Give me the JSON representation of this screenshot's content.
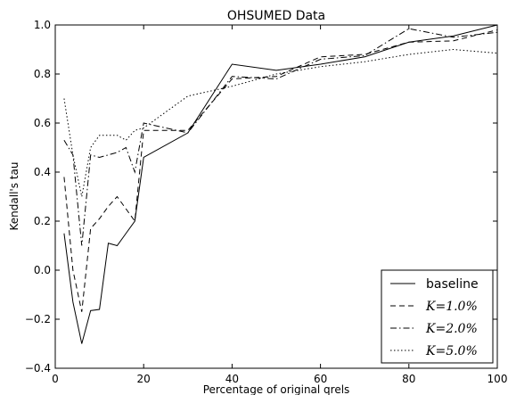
{
  "chart_data": {
    "type": "line",
    "title": "OHSUMED Data",
    "xlabel": "Percentage of original qrels",
    "ylabel": "Kendall's tau",
    "xlim": [
      0,
      100
    ],
    "ylim": [
      -0.4,
      1.0
    ],
    "xticks": [
      "0",
      "20",
      "40",
      "60",
      "80",
      "100"
    ],
    "yticks": [
      "−0.4",
      "−0.2",
      "0.0",
      "0.2",
      "0.4",
      "0.6",
      "0.8",
      "1.0"
    ],
    "xtick_values": [
      0,
      20,
      40,
      60,
      80,
      100
    ],
    "ytick_values": [
      -0.4,
      -0.2,
      0.0,
      0.2,
      0.4,
      0.6,
      0.8,
      1.0
    ],
    "grid": false,
    "legend_position": "bottom-right",
    "series": [
      {
        "name": "baseline",
        "style": "solid",
        "x": [
          2,
          4,
          6,
          8,
          10,
          12,
          14,
          16,
          18,
          20,
          30,
          40,
          50,
          60,
          70,
          80,
          90,
          100
        ],
        "y": [
          0.15,
          -0.13,
          -0.3,
          -0.165,
          -0.16,
          0.11,
          0.1,
          0.15,
          0.2,
          0.46,
          0.56,
          0.84,
          0.815,
          0.84,
          0.87,
          0.93,
          0.955,
          1.0
        ]
      },
      {
        "name": "K=1.0%",
        "style": "dashed",
        "x": [
          2,
          4,
          6,
          8,
          10,
          12,
          14,
          16,
          18,
          20,
          30,
          40,
          50,
          60,
          70,
          80,
          90,
          100
        ],
        "y": [
          0.38,
          0.0,
          -0.17,
          0.17,
          0.21,
          0.26,
          0.3,
          0.25,
          0.2,
          0.57,
          0.57,
          0.78,
          0.79,
          0.87,
          0.88,
          0.93,
          0.935,
          0.98
        ]
      },
      {
        "name": "K=2.0%",
        "style": "dashdot",
        "x": [
          2,
          4,
          6,
          8,
          10,
          12,
          14,
          16,
          18,
          20,
          30,
          40,
          50,
          60,
          70,
          80,
          90,
          100
        ],
        "y": [
          0.53,
          0.47,
          0.1,
          0.47,
          0.46,
          0.47,
          0.48,
          0.5,
          0.4,
          0.6,
          0.56,
          0.79,
          0.78,
          0.86,
          0.875,
          0.985,
          0.95,
          0.97
        ]
      },
      {
        "name": "K=5.0%",
        "style": "dotted",
        "x": [
          2,
          4,
          6,
          8,
          10,
          12,
          14,
          16,
          18,
          20,
          30,
          40,
          50,
          60,
          70,
          80,
          90,
          100
        ],
        "y": [
          0.7,
          0.47,
          0.3,
          0.5,
          0.55,
          0.55,
          0.55,
          0.53,
          0.57,
          0.58,
          0.71,
          0.75,
          0.8,
          0.83,
          0.85,
          0.88,
          0.9,
          0.885
        ]
      }
    ],
    "legend": [
      {
        "label": "baseline",
        "style": "solid",
        "plain": true
      },
      {
        "label": "K=1.0%",
        "style": "dashed",
        "plain": false
      },
      {
        "label": "K=2.0%",
        "style": "dashdot",
        "plain": false
      },
      {
        "label": "K=5.0%",
        "style": "dotted",
        "plain": false
      }
    ],
    "colors": {
      "line": "#000000",
      "background": "#ffffff",
      "frame": "#000000"
    }
  }
}
